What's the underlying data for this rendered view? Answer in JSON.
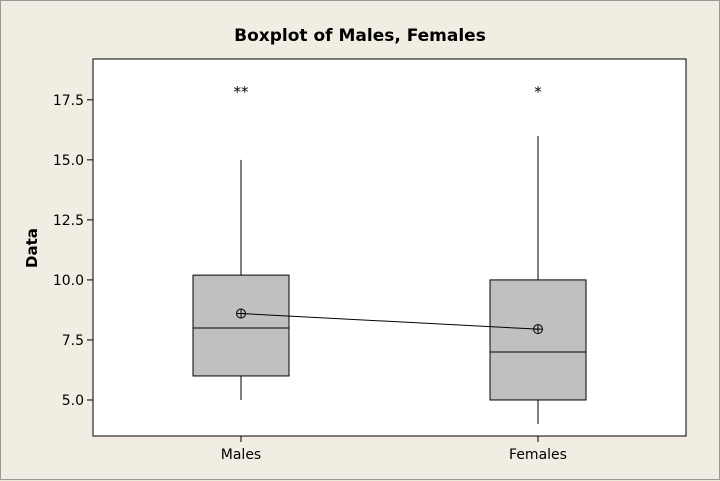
{
  "chart_data": {
    "type": "boxplot",
    "title": "Boxplot of Males, Females",
    "ylabel": "Data",
    "xlabel": "",
    "ylim": [
      3.5,
      19.2
    ],
    "yticks": [
      5.0,
      7.5,
      10.0,
      12.5,
      15.0,
      17.5
    ],
    "ytick_labels": [
      "5.0",
      "7.5",
      "10.0",
      "12.5",
      "15.0",
      "17.5"
    ],
    "categories": [
      "Males",
      "Females"
    ],
    "boxes": [
      {
        "category": "Males",
        "min": 5.0,
        "q1": 6.0,
        "median": 8.0,
        "q3": 10.2,
        "max": 15.0,
        "mean": 8.6,
        "outliers": [
          18.0,
          18.0
        ],
        "outlier_label": "**"
      },
      {
        "category": "Females",
        "min": 4.0,
        "q1": 5.0,
        "median": 7.0,
        "q3": 10.0,
        "max": 16.0,
        "mean": 7.95,
        "outliers": [
          18.0
        ],
        "outlier_label": "*"
      }
    ],
    "mean_connect_line": true,
    "grid": false,
    "legend": "none",
    "colors": {
      "box_fill": "#c0c0c0",
      "plot_bg": "#ffffff",
      "frame_bg": "#f1ede2",
      "line": "#000000"
    }
  }
}
